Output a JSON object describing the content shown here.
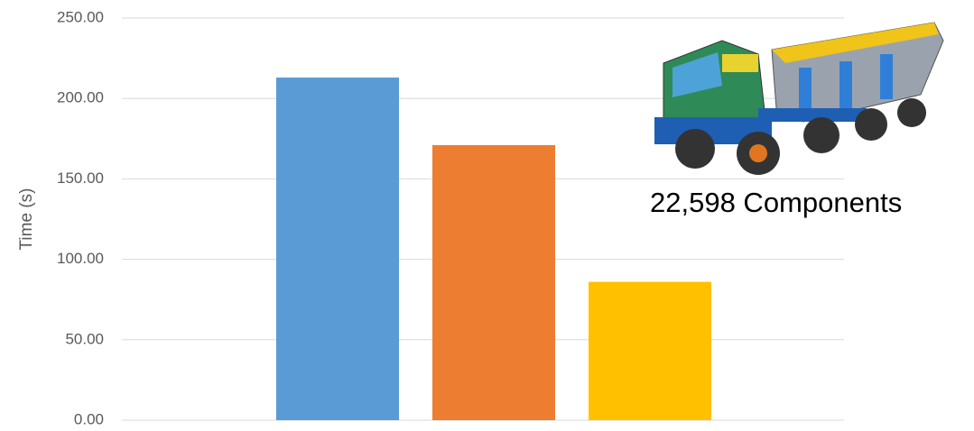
{
  "chart_data": {
    "type": "bar",
    "y_label": "Time (s)",
    "annotation": "22,598 Components",
    "categories": [
      null,
      null,
      null
    ],
    "values": [
      213,
      171,
      86
    ],
    "colors": [
      "#5b9bd5",
      "#ed7d31",
      "#ffc000"
    ],
    "ylim": [
      0,
      250
    ],
    "yticks": [
      {
        "value": 0,
        "label": "0.00"
      },
      {
        "value": 50,
        "label": "50.00"
      },
      {
        "value": 100,
        "label": "100.00"
      },
      {
        "value": 150,
        "label": "150.00"
      },
      {
        "value": 200,
        "label": "200.00"
      },
      {
        "value": 250,
        "label": "250.00"
      }
    ],
    "grid": true
  }
}
